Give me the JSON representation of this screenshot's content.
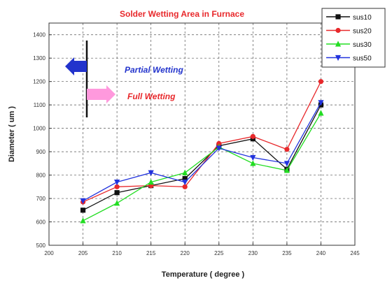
{
  "chart_data": {
    "type": "line",
    "title": "Solder Wetting Area in Furnace",
    "xlabel": "Temperature ( degree )",
    "ylabel": "Diameter ( um )",
    "xlim": [
      200,
      245
    ],
    "ylim": [
      500,
      1450
    ],
    "x_ticks": [
      "200",
      "205",
      "210",
      "215",
      "220",
      "225",
      "230",
      "235",
      "240",
      "245"
    ],
    "y_ticks": [
      "500",
      "600",
      "700",
      "800",
      "900",
      "1000",
      "1100",
      "1200",
      "1300",
      "1400"
    ],
    "grid": true,
    "legend_position": "top-right",
    "x": [
      205,
      210,
      215,
      220,
      225,
      230,
      235,
      240
    ],
    "series": [
      {
        "name": "sus10",
        "color": "#111111",
        "marker": "square",
        "values": [
          650,
          725,
          755,
          785,
          925,
          955,
          825,
          1100
        ]
      },
      {
        "name": "sus20",
        "color": "#e8282b",
        "marker": "circle",
        "values": [
          685,
          750,
          755,
          750,
          935,
          965,
          910,
          1200
        ]
      },
      {
        "name": "sus30",
        "color": "#22dd22",
        "marker": "triangle-up",
        "values": [
          605,
          680,
          770,
          810,
          920,
          850,
          820,
          1065
        ]
      },
      {
        "name": "sus50",
        "color": "#2233dd",
        "marker": "triangle-down",
        "values": [
          690,
          770,
          810,
          770,
          915,
          875,
          850,
          1110
        ]
      }
    ],
    "annotations": [
      {
        "text": "Partial Wetting",
        "color": "#2233cc",
        "arrow_color": "#2233cc",
        "direction": "left"
      },
      {
        "text": "Full Wetting",
        "color": "#e8282b",
        "arrow_color": "#ff99dd",
        "direction": "right"
      }
    ]
  }
}
